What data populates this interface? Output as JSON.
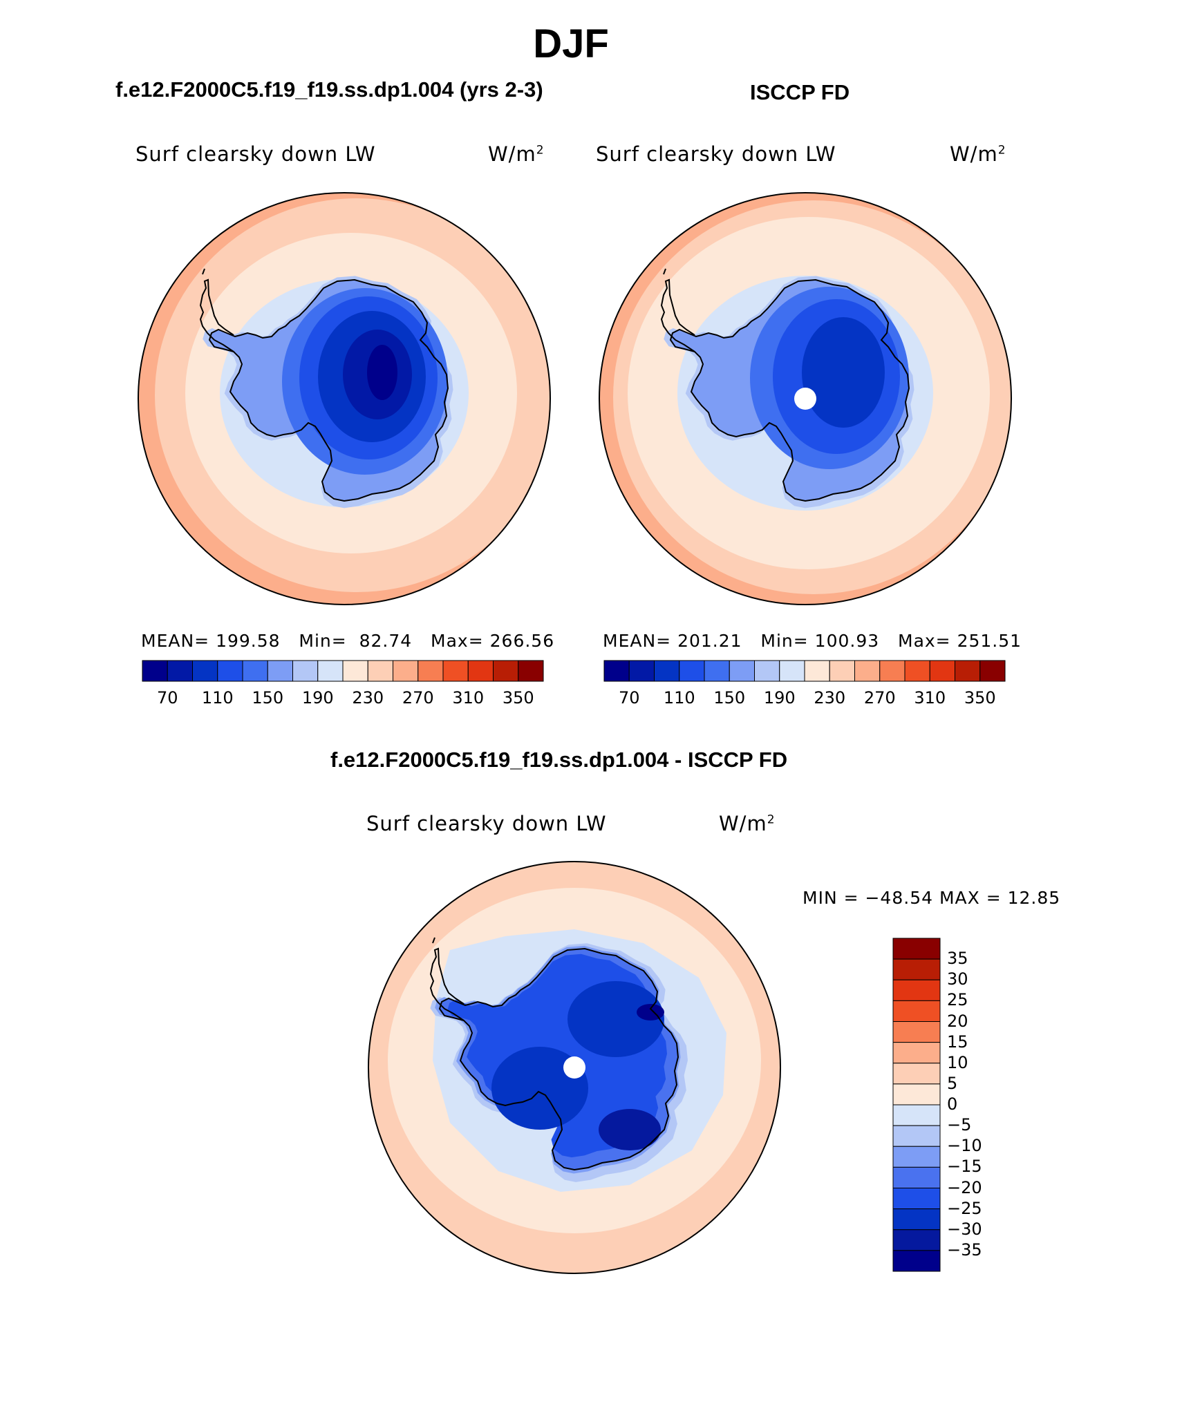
{
  "figure": {
    "title": "DJF",
    "colors": {
      "abs_scale": [
        "#00008b",
        "#0219a6",
        "#0434c4",
        "#1e4fe8",
        "#3f6ff0",
        "#7d9df5",
        "#b3c7f6",
        "#d6e4f9",
        "#fde8d8",
        "#fdcfb6",
        "#fcae8b",
        "#f77e52",
        "#ef5024",
        "#e23612",
        "#b81e05",
        "#890000"
      ],
      "diff_scale": [
        "#00008b",
        "#05199e",
        "#0434c4",
        "#1e4fe8",
        "#4a72ef",
        "#7d9df5",
        "#b3c7f6",
        "#d6e4f9",
        "#fde8d8",
        "#fdcfb6",
        "#fcae8b",
        "#f77e52",
        "#ef5024",
        "#e23612",
        "#b81e05",
        "#890000"
      ],
      "coast": "#000000"
    },
    "panels": {
      "model": {
        "title": "f.e12.F2000C5.f19_f19.ss.dp1.004 (yrs 2-3)",
        "variable": "Surf clearsky down LW",
        "units": "W/m",
        "units_sup": "2",
        "stats": {
          "mean_label": "MEAN=",
          "mean": "199.58",
          "min_label": "Min=",
          "min": "82.74",
          "max_label": "Max=",
          "max": "266.56"
        },
        "colorbar_ticks": [
          "70",
          "110",
          "150",
          "190",
          "230",
          "270",
          "310",
          "350"
        ]
      },
      "obs": {
        "title": "ISCCP FD",
        "variable": "Surf clearsky down LW",
        "units": "W/m",
        "units_sup": "2",
        "stats": {
          "mean_label": "MEAN=",
          "mean": "201.21",
          "min_label": "Min=",
          "min": "100.93",
          "max_label": "Max=",
          "max": "251.51"
        },
        "colorbar_ticks": [
          "70",
          "110",
          "150",
          "190",
          "230",
          "270",
          "310",
          "350"
        ]
      },
      "diff": {
        "title": "f.e12.F2000C5.f19_f19.ss.dp1.004 - ISCCP FD",
        "variable": "Surf clearsky down LW",
        "units": "W/m",
        "units_sup": "2",
        "minmax": "MIN = −48.54 MAX =   12.85",
        "colorbar_ticks": [
          "35",
          "30",
          "25",
          "20",
          "15",
          "10",
          "5",
          "0",
          "−5",
          "−10",
          "−15",
          "−20",
          "−25",
          "−30",
          "−35"
        ]
      }
    }
  }
}
